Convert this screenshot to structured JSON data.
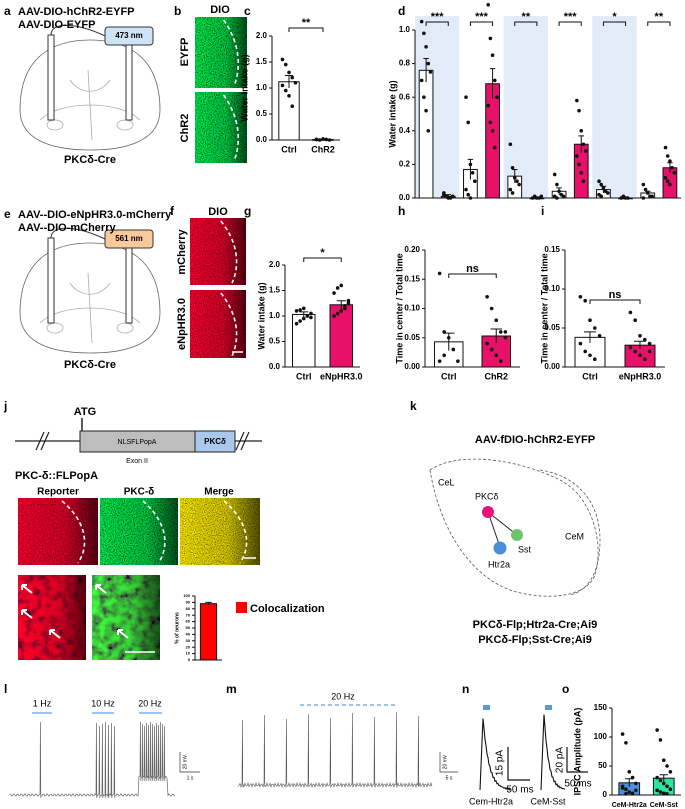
{
  "panel_labels": [
    "a",
    "b",
    "c",
    "d",
    "e",
    "f",
    "g",
    "h",
    "i",
    "j",
    "k",
    "l",
    "m",
    "n",
    "o"
  ],
  "a": {
    "constructs": [
      "AAV-DIO-hChR2-EYFP",
      "AAV-DIO-EYFP"
    ],
    "laser": "473 nm",
    "mouse": "PKCδ-Cre"
  },
  "b": {
    "title": "DIO",
    "rows": [
      "EYFP",
      "ChR2"
    ]
  },
  "e": {
    "constructs": [
      "AAV--DIO-eNpHR3.0-mCherry",
      "AAV--DIO-mCherry"
    ],
    "laser": "561 nm",
    "mouse": "PKCδ-Cre"
  },
  "f": {
    "title": "DIO",
    "rows": [
      "mCherry",
      "eNpHR3.0"
    ]
  },
  "j": {
    "start": "ATG",
    "cassette": "NLSFLPopA",
    "exon": "Exon II",
    "gene": "PKCδ",
    "allele": "PKC-δ::FLPopA",
    "columns": [
      "Reporter",
      "PKC-δ",
      "Merge"
    ],
    "legend": "Colocalization"
  },
  "k": {
    "virus": "AAV-fDIO-hChR2-EYFP",
    "regions": [
      "CeL",
      "CeM"
    ],
    "cells": [
      "PKCδ",
      "Sst",
      "Htr2a"
    ],
    "lines": [
      "PKCδ-Flp;Htr2a-Cre;Ai9",
      "PKCδ-Flp;Sst-Cre;Ai9"
    ]
  },
  "l": {
    "stimuli": [
      "1 Hz",
      "10 Hz",
      "20 Hz"
    ],
    "scale_y": "20 mV",
    "scale_x": "1 s"
  },
  "m": {
    "stimulus": "20 Hz",
    "scale_y": "20 mV",
    "scale_x": "5 s"
  },
  "n": {
    "traces": [
      {
        "scale_y": "15 pA",
        "scale_x": "50 ms",
        "name": "Cem-Htr2a"
      },
      {
        "scale_y": "20 pA",
        "scale_x": "50 ms",
        "name": "CeM-Sst"
      }
    ]
  },
  "chart_data": [
    {
      "type": "bar",
      "ylabel": "Water intake (g)",
      "categories": [
        "Ctrl",
        "ChR2"
      ],
      "values": [
        1.12,
        0.01
      ],
      "errors": [
        0.12,
        0.005
      ],
      "colors": [
        "#ffffff",
        "#e8116a"
      ],
      "points": [
        [
          1.55,
          1.45,
          1.3,
          1.2,
          1.1,
          1.05,
          0.95,
          0.85,
          0.65
        ],
        [
          0.01,
          0,
          0.02,
          0.01,
          0,
          0.01
        ]
      ],
      "ylim": [
        0,
        2
      ],
      "yticks": [
        {
          "value": 0,
          "label": "0.0"
        },
        0.5,
        {
          "value": 1,
          "label": "1.0"
        },
        1.5,
        {
          "value": 2,
          "label": "2.0"
        }
      ],
      "annotations": [
        "**"
      ]
    },
    {
      "type": "bar",
      "ylabel": "Water intake (g)",
      "values": [
        0.76,
        0.01,
        0.17,
        0.68,
        0.13,
        0,
        0.04,
        0.32,
        0.05,
        0,
        0.03,
        0.18
      ],
      "errors": [
        0.07,
        0.01,
        0.06,
        0.09,
        0.04,
        0,
        0.02,
        0.05,
        0.02,
        0,
        0.01,
        0.03
      ],
      "colors": [
        "#ffffff",
        "#e8116a",
        "#ffffff",
        "#e8116a",
        "#ffffff",
        "#e8116a",
        "#ffffff",
        "#e8116a",
        "#ffffff",
        "#e8116a",
        "#ffffff",
        "#e8116a"
      ],
      "points": [
        [
          1.05,
          0.98,
          0.9,
          0.8,
          0.75,
          0.7,
          0.6,
          0.52,
          0.4
        ],
        [
          0.03,
          0.01,
          0,
          0,
          0.01,
          0.02
        ],
        [
          0.6,
          0.45,
          0.2,
          0.15,
          0.1,
          0.05,
          0.02,
          0
        ],
        [
          1.15,
          0.95,
          0.85,
          0.7,
          0.6,
          0.55,
          0.45,
          0.4,
          0.3
        ],
        [
          0.32,
          0.18,
          0.12,
          0.1,
          0.08,
          0.05,
          0.03
        ],
        [
          0,
          0.01,
          0,
          0,
          0.01
        ],
        [
          0.14,
          0.08,
          0.04,
          0.02,
          0.01,
          0.01,
          0
        ],
        [
          0.58,
          0.52,
          0.4,
          0.32,
          0.28,
          0.25,
          0.2,
          0.15,
          0.1
        ],
        [
          0.1,
          0.08,
          0.06,
          0.04,
          0.03,
          0.02,
          0.01
        ],
        [
          0,
          0.01,
          0,
          0
        ],
        [
          0.08,
          0.05,
          0.03,
          0.01,
          0.01,
          0
        ],
        [
          0.3,
          0.25,
          0.22,
          0.18,
          0.15,
          0.12,
          0.1,
          0.08
        ]
      ],
      "ylim": [
        0,
        1
      ],
      "yticks": [
        {
          "value": 0,
          "label": "0.0"
        },
        0.2,
        0.4,
        0.6,
        0.8,
        {
          "value": 1,
          "label": "1.0"
        }
      ],
      "annotations": [
        "***",
        "***",
        "**",
        "***",
        "*",
        "**"
      ]
    },
    {
      "type": "bar",
      "ylabel": "Water intake (g)",
      "categories": [
        "Ctrl",
        "eNpHR3.0"
      ],
      "values": [
        1.03,
        1.22
      ],
      "errors": [
        0.05,
        0.08
      ],
      "colors": [
        "#ffffff",
        "#e8116a"
      ],
      "points": [
        [
          0.85,
          0.9,
          0.95,
          1.0,
          1.05,
          1.1,
          1.12,
          1.15,
          1.0,
          0.97
        ],
        [
          1.0,
          1.05,
          1.1,
          1.2,
          1.3,
          1.45,
          1.55,
          1.6,
          1.15,
          1.25
        ]
      ],
      "ylim": [
        0,
        2
      ],
      "yticks": [
        {
          "value": 0,
          "label": "0.0"
        },
        0.5,
        {
          "value": 1,
          "label": "1.0"
        },
        1.5,
        {
          "value": 2,
          "label": "2.0"
        }
      ],
      "annotations": [
        "*"
      ]
    },
    {
      "type": "bar",
      "ylabel": "Time in center / Total time",
      "categories": [
        "Ctrl",
        "ChR2"
      ],
      "values": [
        0.043,
        0.053
      ],
      "errors": [
        0.015,
        0.012
      ],
      "colors": [
        "#ffffff",
        "#e8116a"
      ],
      "points": [
        [
          0.16,
          0.06,
          0.05,
          0.03,
          0.01,
          0.01,
          0.02
        ],
        [
          0.12,
          0.1,
          0.08,
          0.06,
          0.05,
          0.04,
          0.03,
          0.02,
          0.01,
          0.06
        ]
      ],
      "ylim": [
        0,
        0.2
      ],
      "yticks": [
        {
          "value": 0,
          "label": "0.00"
        },
        0.05,
        {
          "value": 0.1,
          "label": "0.10"
        },
        0.15,
        {
          "value": 0.2,
          "label": "0.20"
        }
      ],
      "annotations": [
        "ns"
      ]
    },
    {
      "type": "bar",
      "ylabel": "Time in center / Total time",
      "categories": [
        "Ctrl",
        "eNpHR3.0"
      ],
      "values": [
        0.038,
        0.028
      ],
      "errors": [
        0.007,
        0.005
      ],
      "colors": [
        "#ffffff",
        "#e8116a"
      ],
      "points": [
        [
          0.09,
          0.085,
          0.06,
          0.05,
          0.04,
          0.03,
          0.02,
          0.015,
          0.01
        ],
        [
          0.07,
          0.06,
          0.04,
          0.035,
          0.03,
          0.025,
          0.02,
          0.015,
          0.01,
          0.02
        ]
      ],
      "ylim": [
        0,
        0.15
      ],
      "yticks": [
        {
          "value": 0,
          "label": "0.00"
        },
        0.05,
        {
          "value": 0.1,
          "label": "0.10"
        },
        0.15
      ],
      "annotations": [
        "ns"
      ]
    },
    {
      "type": "bar",
      "ylabel": "% of neurons",
      "values": [
        88
      ],
      "errors": [
        2
      ],
      "colors": [
        "#ff0000"
      ],
      "ylim": [
        0,
        100
      ],
      "yticks": [
        0,
        10,
        20,
        30,
        40,
        50,
        60,
        70,
        80,
        90,
        100
      ]
    },
    {
      "type": "bar",
      "ylabel": "IPSC Amplitude (pA)",
      "categories": [
        "CeM-Htr2a",
        "CeM-Sst"
      ],
      "values": [
        21,
        29
      ],
      "errors": [
        7,
        6
      ],
      "colors": [
        "#4a8fe0",
        "#2ee3a0"
      ],
      "points": [
        [
          105,
          90,
          40,
          30,
          20,
          15,
          10,
          5,
          3,
          8,
          12,
          2
        ],
        [
          112,
          95,
          60,
          50,
          40,
          30,
          25,
          20,
          15,
          10,
          8,
          5,
          3,
          2
        ]
      ],
      "ylim": [
        0,
        150
      ],
      "yticks": [
        0,
        50,
        100,
        150
      ]
    }
  ]
}
